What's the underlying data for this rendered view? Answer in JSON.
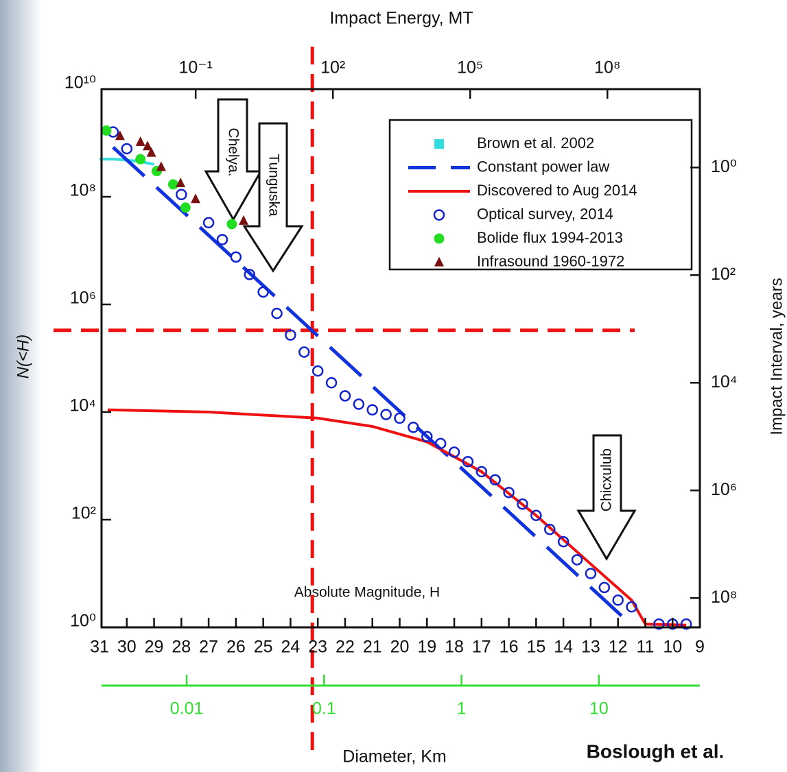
{
  "chart_data": {
    "type": "line",
    "top_axis_label": "Impact Energy, MT",
    "x_label": "Absolute Magnitude, H",
    "y_label": "N(<H)",
    "y2_label": "Impact Interval, years",
    "x3_label": "Diameter, Km",
    "credit": "Boslough et al.",
    "annotations": [
      "Chelya.",
      "Tunguska",
      "Chicxulub"
    ],
    "xlim": [
      31,
      9
    ],
    "xticks": [
      31,
      30,
      29,
      28,
      27,
      26,
      25,
      24,
      23,
      22,
      21,
      20,
      19,
      18,
      17,
      16,
      15,
      14,
      13,
      12,
      11,
      10,
      9
    ],
    "ylim": [
      1,
      10000000000
    ],
    "yscale": "log",
    "yticks": [
      {
        "value": 1,
        "label": "10⁰"
      },
      {
        "value": 100,
        "label": "10²"
      },
      {
        "value": 10000,
        "label": "10⁴"
      },
      {
        "value": 1000000,
        "label": "10⁶"
      },
      {
        "value": 100000000,
        "label": "10⁸"
      },
      {
        "value": 10000000000,
        "label": "10¹⁰"
      }
    ],
    "x2lim": [
      0.00079,
      10500000000
    ],
    "x2scale": "log",
    "x2ticks": [
      {
        "value": 0.1,
        "label": "10⁻¹"
      },
      {
        "value": 100,
        "label": "10²"
      },
      {
        "value": 100000,
        "label": "10⁵"
      },
      {
        "value": 100000000,
        "label": "10⁸"
      }
    ],
    "y2lim": [
      350000000,
      0.035
    ],
    "y2scale": "log",
    "y2ticks": [
      {
        "value": 1,
        "label": "10⁰"
      },
      {
        "value": 100,
        "label": "10²"
      },
      {
        "value": 10000,
        "label": "10⁴"
      },
      {
        "value": 1000000,
        "label": "10⁶"
      },
      {
        "value": 100000000,
        "label": "10⁸"
      }
    ],
    "x3lim": [
      0.00232,
      54.3
    ],
    "x3scale": "log",
    "x3ticks": [
      0.01,
      0.1,
      1,
      10
    ],
    "x3color": "#33dd33",
    "legend": "upper right",
    "reference_lines": [
      {
        "axis": "x",
        "value": 23.2,
        "color": "#ee1111"
      },
      {
        "axis": "y",
        "value": 330000,
        "color": "#ee1111"
      }
    ],
    "series": [
      {
        "name": "Brown et al. 2002",
        "type": "line",
        "marker": "square",
        "color": "#33dddd",
        "x": [
          31,
          30.5,
          30,
          29.5,
          29
        ],
        "values": [
          500000000,
          500000000,
          480000000,
          450000000,
          400000000
        ]
      },
      {
        "name": "Constant power law",
        "type": "line",
        "dashed": true,
        "color": "#1133dd",
        "x": [
          30.5,
          11.5
        ],
        "values": [
          830000000,
          1.1
        ]
      },
      {
        "name": "Discovered to Aug 2014",
        "type": "line",
        "color": "#ee1111",
        "x": [
          30.7,
          27,
          23,
          21,
          19,
          17,
          15,
          13,
          11.5,
          11,
          9.5
        ],
        "values": [
          11000,
          10000,
          7700,
          5400,
          2800,
          780,
          120,
          15,
          3.2,
          1.15,
          1.1
        ]
      },
      {
        "name": "Optical survey, 2014",
        "type": "scatter",
        "marker": "circle-open",
        "color": "#1122cc",
        "x": [
          30.5,
          30,
          28,
          27,
          26.5,
          26,
          25.5,
          25,
          24.5,
          24,
          23.5,
          23,
          22.5,
          22,
          21.5,
          21,
          20.5,
          20,
          19.5,
          19,
          18.5,
          18,
          17.5,
          17,
          16.5,
          16,
          15.5,
          15,
          14.5,
          14,
          13.5,
          13,
          12.5,
          12,
          11.5,
          10.5,
          10,
          9.5
        ],
        "values": [
          1600000000,
          780000000,
          110000000,
          33000000,
          16000000,
          7600000,
          3600000,
          1700000,
          680000,
          270000,
          130000,
          58000,
          35000,
          20000,
          14000,
          11000,
          9000,
          7700,
          5200,
          3500,
          2600,
          1800,
          1200,
          780,
          550,
          320,
          195,
          120,
          66,
          39,
          18,
          10,
          5.5,
          3.2,
          2.4,
          1.15,
          1.15,
          1.15
        ]
      },
      {
        "name": "Bolide flux 1994-2013",
        "type": "scatter",
        "marker": "circle",
        "color": "#22dd22",
        "x": [
          30.75,
          29.5,
          28.9,
          28.3,
          27.85,
          26.15
        ],
        "values": [
          1700000000,
          500000000,
          300000000,
          170000000,
          63000000,
          31000000
        ]
      },
      {
        "name": "Infrasound 1960-1972",
        "type": "scatter",
        "marker": "triangle",
        "color": "#7a1010",
        "x": [
          30.25,
          29.5,
          29.24,
          29.1,
          28.74,
          28.03,
          27.48,
          25.72
        ],
        "values": [
          1350000000,
          1050000000,
          870000000,
          660000000,
          360000000,
          180000000,
          91000000,
          36000000
        ]
      }
    ]
  }
}
